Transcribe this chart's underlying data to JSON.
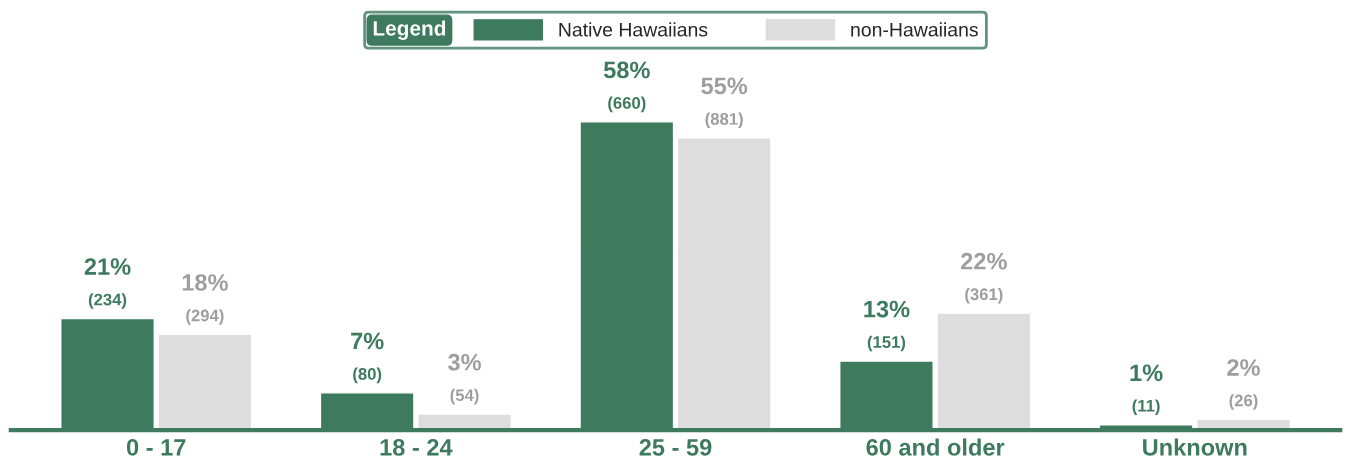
{
  "chart_data": {
    "type": "bar",
    "categories": [
      "0 - 17",
      "18 - 24",
      "25 - 59",
      "60 and older",
      "Unknown"
    ],
    "legend_title": "Legend",
    "series": [
      {
        "name": "Native Hawaiians",
        "color": "#3d7a5e",
        "values": [
          21,
          7,
          58,
          13,
          1
        ],
        "value_labels": [
          "21%\n(234)",
          "7%\n(80)",
          "58%\n(660)",
          "13%\n(151)",
          "1%\n(11)"
        ]
      },
      {
        "name": "non-Hawaiians",
        "color": "#dddddd",
        "values": [
          18,
          3,
          55,
          22,
          2
        ],
        "value_labels": [
          "18%\n(294)",
          "3%\n(54)",
          "55%\n(881)",
          "22%\n(361)",
          "2%\n(26)"
        ]
      }
    ],
    "legend": "top",
    "grid": false
  }
}
